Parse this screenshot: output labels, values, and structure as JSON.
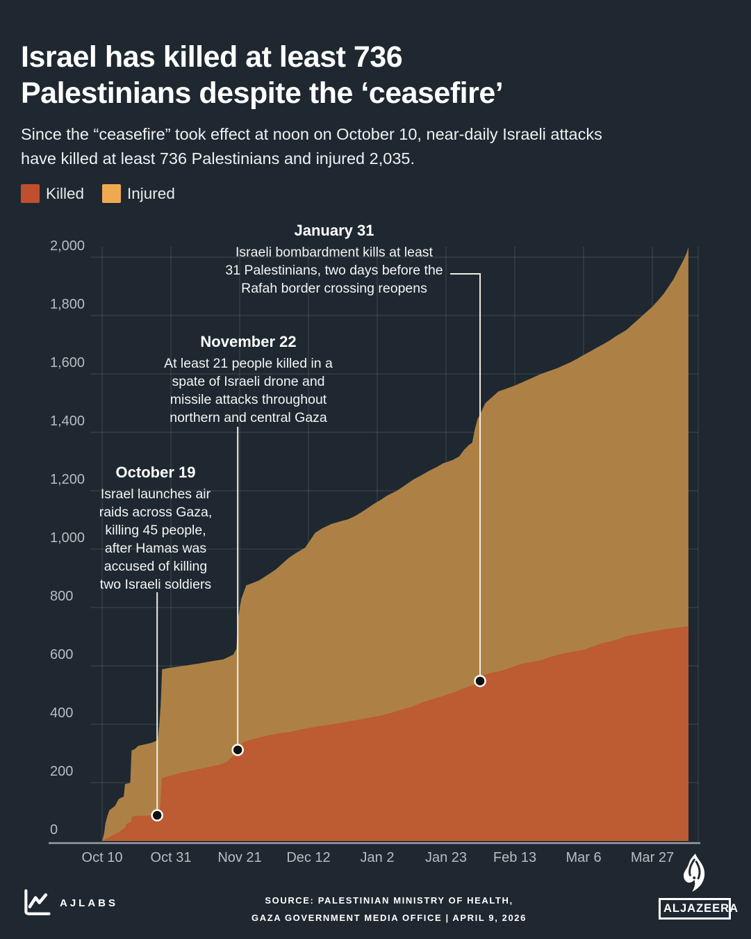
{
  "header": {
    "title_lines": [
      "Israel has killed at least 736",
      "Palestinians despite the ‘ceasefire’"
    ],
    "subtitle_lines": [
      "Since the “ceasefire” took effect at noon on October 10, near-daily Israeli attacks",
      "have killed at least 736 Palestinians and injured 2,035."
    ]
  },
  "legend": {
    "items": [
      {
        "label": "Killed",
        "color": "#c04f2e"
      },
      {
        "label": "Injured",
        "color": "#efaa51"
      }
    ]
  },
  "colors": {
    "background": "#1f2830",
    "grid": "rgba(255,255,255,0.12)",
    "axis": "#9aa0a5",
    "tick_text": "#b7bdc3",
    "annotation_line": "#f1ece3",
    "dot_fill": "#101010",
    "dot_stroke": "#ffffff"
  },
  "chart_data": {
    "type": "area",
    "title": "",
    "xlabel": "",
    "ylabel": "",
    "values_cumulative": true,
    "ylim": [
      0,
      2000
    ],
    "y_axis": {
      "ticks": [
        {
          "label": "0",
          "value": 0
        },
        {
          "label": "200",
          "value": 200
        },
        {
          "label": "400",
          "value": 400
        },
        {
          "label": "600",
          "value": 600
        },
        {
          "label": "800",
          "value": 800
        },
        {
          "label": "1,000",
          "value": 1000
        },
        {
          "label": "1,200",
          "value": 1200
        },
        {
          "label": "1,400",
          "value": 1400
        },
        {
          "label": "1,600",
          "value": 1600
        },
        {
          "label": "1,800",
          "value": 1800
        },
        {
          "label": "2,000",
          "value": 2000
        }
      ]
    },
    "x_axis": {
      "ticks": [
        {
          "label": "Oct 10",
          "day": 0
        },
        {
          "label": "Oct 31",
          "day": 21
        },
        {
          "label": "Nov 21",
          "day": 42
        },
        {
          "label": "Dec 12",
          "day": 63
        },
        {
          "label": "Jan 2",
          "day": 84
        },
        {
          "label": "Jan 23",
          "day": 105
        },
        {
          "label": "Feb 13",
          "day": 126
        },
        {
          "label": "Mar 6",
          "day": 147
        },
        {
          "label": "Mar 27",
          "day": 168
        }
      ]
    },
    "series": [
      {
        "name": "Killed",
        "color": "#bd5b33",
        "final_value": 736,
        "points": [
          [
            0,
            0
          ],
          [
            1,
            6
          ],
          [
            2,
            12
          ],
          [
            3,
            18
          ],
          [
            4,
            24
          ],
          [
            5,
            30
          ],
          [
            6,
            38
          ],
          [
            7,
            45
          ],
          [
            7.4,
            58
          ],
          [
            8,
            62
          ],
          [
            8.8,
            64
          ],
          [
            9.1,
            83
          ],
          [
            10,
            86
          ],
          [
            13,
            87
          ],
          [
            16.8,
            88
          ],
          [
            17.4,
            95
          ],
          [
            17.8,
            130
          ],
          [
            18.2,
            214
          ],
          [
            19,
            218
          ],
          [
            21,
            224
          ],
          [
            23,
            231
          ],
          [
            26,
            238
          ],
          [
            29,
            245
          ],
          [
            33,
            255
          ],
          [
            36,
            262
          ],
          [
            38,
            270
          ],
          [
            39.5,
            286
          ],
          [
            41,
            300
          ],
          [
            41.4,
            312
          ],
          [
            42,
            322
          ],
          [
            43,
            338
          ],
          [
            45,
            346
          ],
          [
            47,
            352
          ],
          [
            50,
            360
          ],
          [
            54,
            369
          ],
          [
            58,
            375
          ],
          [
            62,
            385
          ],
          [
            66,
            393
          ],
          [
            70,
            399
          ],
          [
            73,
            405
          ],
          [
            76,
            411
          ],
          [
            79,
            417
          ],
          [
            82,
            423
          ],
          [
            85,
            429
          ],
          [
            88,
            438
          ],
          [
            92,
            452
          ],
          [
            95,
            462
          ],
          [
            98,
            476
          ],
          [
            101,
            486
          ],
          [
            105,
            500
          ],
          [
            108,
            512
          ],
          [
            111,
            526
          ],
          [
            113,
            533
          ],
          [
            115,
            545
          ],
          [
            115.8,
            562
          ],
          [
            117,
            571
          ],
          [
            119,
            577
          ],
          [
            122,
            583
          ],
          [
            125,
            595
          ],
          [
            128,
            607
          ],
          [
            131,
            613
          ],
          [
            134,
            619
          ],
          [
            137,
            631
          ],
          [
            141,
            643
          ],
          [
            144,
            649
          ],
          [
            147,
            655
          ],
          [
            150,
            667
          ],
          [
            153,
            679
          ],
          [
            156,
            685
          ],
          [
            160,
            702
          ],
          [
            163,
            708
          ],
          [
            166,
            714
          ],
          [
            169,
            720
          ],
          [
            172,
            726
          ],
          [
            175,
            730
          ],
          [
            179,
            736
          ]
        ]
      },
      {
        "name": "Injured",
        "color": "#ad8145",
        "final_value": 2035,
        "points": [
          [
            0,
            0
          ],
          [
            0.6,
            25
          ],
          [
            1,
            60
          ],
          [
            1.6,
            85
          ],
          [
            2.2,
            105
          ],
          [
            3,
            112
          ],
          [
            4,
            121
          ],
          [
            5,
            143
          ],
          [
            5.8,
            148
          ],
          [
            6.6,
            152
          ],
          [
            7,
            195
          ],
          [
            8.6,
            199
          ],
          [
            9,
            310
          ],
          [
            10,
            315
          ],
          [
            11,
            326
          ],
          [
            13,
            331
          ],
          [
            15,
            336
          ],
          [
            17,
            345
          ],
          [
            17.5,
            405
          ],
          [
            17.9,
            470
          ],
          [
            18.3,
            588
          ],
          [
            20,
            592
          ],
          [
            23,
            597
          ],
          [
            26,
            602
          ],
          [
            30,
            609
          ],
          [
            34,
            617
          ],
          [
            37,
            622
          ],
          [
            40,
            638
          ],
          [
            41,
            658
          ],
          [
            41.5,
            762
          ],
          [
            42.5,
            830
          ],
          [
            44,
            876
          ],
          [
            46,
            884
          ],
          [
            48,
            893
          ],
          [
            51,
            915
          ],
          [
            53,
            930
          ],
          [
            55,
            950
          ],
          [
            57,
            970
          ],
          [
            59,
            985
          ],
          [
            62,
            1005
          ],
          [
            63.5,
            1030
          ],
          [
            65,
            1055
          ],
          [
            67,
            1070
          ],
          [
            70,
            1086
          ],
          [
            73,
            1096
          ],
          [
            75,
            1102
          ],
          [
            77,
            1112
          ],
          [
            79,
            1125
          ],
          [
            81,
            1140
          ],
          [
            83,
            1155
          ],
          [
            85,
            1168
          ],
          [
            87,
            1183
          ],
          [
            90,
            1200
          ],
          [
            92,
            1215
          ],
          [
            95,
            1238
          ],
          [
            97,
            1250
          ],
          [
            100,
            1269
          ],
          [
            102,
            1280
          ],
          [
            104,
            1293
          ],
          [
            107,
            1305
          ],
          [
            109,
            1317
          ],
          [
            110.5,
            1340
          ],
          [
            112,
            1357
          ],
          [
            113,
            1364
          ],
          [
            113.8,
            1410
          ],
          [
            114.6,
            1445
          ],
          [
            115.2,
            1457
          ],
          [
            117,
            1500
          ],
          [
            119,
            1520
          ],
          [
            121,
            1540
          ],
          [
            124,
            1552
          ],
          [
            126,
            1560
          ],
          [
            128,
            1570
          ],
          [
            130,
            1580
          ],
          [
            132,
            1590
          ],
          [
            134,
            1600
          ],
          [
            137,
            1612
          ],
          [
            139,
            1620
          ],
          [
            141,
            1630
          ],
          [
            143,
            1640
          ],
          [
            145,
            1652
          ],
          [
            147,
            1665
          ],
          [
            149,
            1677
          ],
          [
            151,
            1690
          ],
          [
            153,
            1702
          ],
          [
            155,
            1715
          ],
          [
            157,
            1730
          ],
          [
            160,
            1750
          ],
          [
            162,
            1770
          ],
          [
            164,
            1790
          ],
          [
            166,
            1810
          ],
          [
            168,
            1830
          ],
          [
            170,
            1855
          ],
          [
            171.5,
            1875
          ],
          [
            173,
            1900
          ],
          [
            174.5,
            1925
          ],
          [
            176,
            1958
          ],
          [
            177.5,
            1990
          ],
          [
            178.5,
            2015
          ],
          [
            179,
            2035
          ]
        ]
      }
    ],
    "annotations": [
      {
        "heading": "January 31",
        "lines": [
          "Israeli bombardment kills at least",
          "31 Palestinians, two days before the",
          "Rafah border crossing reopens"
        ],
        "dot_day": 115.4,
        "dot_value": 548
      },
      {
        "heading": "November 22",
        "lines": [
          "At least 21 people killed in a",
          "spate of Israeli drone and",
          "missile attacks throughout",
          "northern and central Gaza"
        ],
        "dot_day": 41.4,
        "dot_value": 312
      },
      {
        "heading": "October 19",
        "lines": [
          "Israel launches air",
          "raids across Gaza,",
          "killing 45 people,",
          "after Hamas was",
          "accused of killing",
          "two Israeli soldiers"
        ],
        "dot_day": 16.8,
        "dot_value": 88
      }
    ]
  },
  "footer": {
    "source_lines": [
      "SOURCE:  PALESTINIAN MINISTRY OF HEALTH,",
      "GAZA GOVERNMENT MEDIA OFFICE  |   APRIL 9, 2026"
    ],
    "ajlabs_label": "AJLABS",
    "aljazeera_label": "ALJAZEERA"
  }
}
